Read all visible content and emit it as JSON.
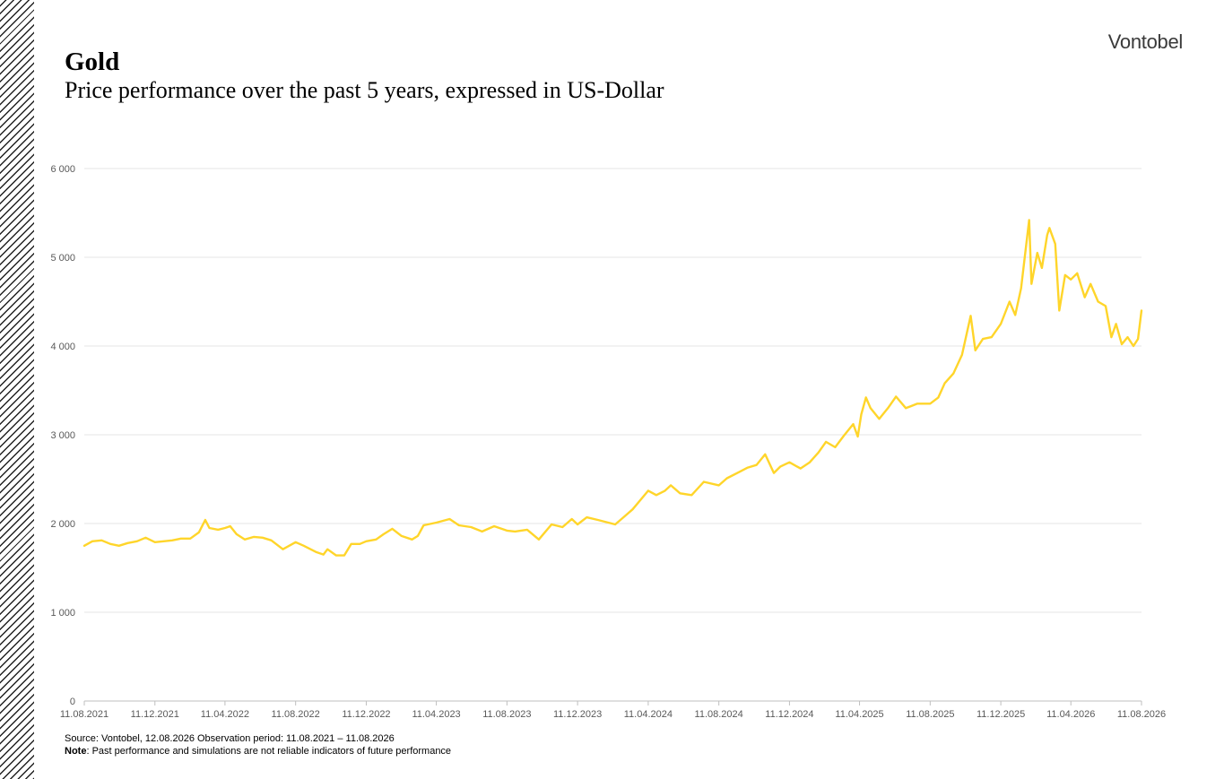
{
  "header": {
    "title": "Gold",
    "subtitle": "Price performance over the past 5 years, expressed in US-Dollar",
    "brand": "Vontobel"
  },
  "footer": {
    "source": "Source: Vontobel, 12.08.2026 Observation period: 11.08.2021 –  11.08.2026",
    "note_label": "Note",
    "note_text": ": Past performance and simulations are not reliable indicators of future performance"
  },
  "colors": {
    "line": "#FFD52A",
    "grid": "#e6e6e6",
    "axis": "#bfbfbf",
    "tick_text": "#595959"
  },
  "chart_data": {
    "type": "line",
    "title": "Gold",
    "subtitle": "Price performance over the past 5 years, expressed in US-Dollar",
    "xlabel": "",
    "ylabel": "",
    "ylim": [
      0,
      6000
    ],
    "y_ticks": [
      0,
      1000,
      2000,
      3000,
      4000,
      5000,
      6000
    ],
    "y_tick_labels": [
      "0",
      "1 000",
      "2 000",
      "3 000",
      "4 000",
      "5 000",
      "6 000"
    ],
    "x_range": [
      "2021-08-11",
      "2026-08-11"
    ],
    "x_ticks": [
      "2021-08-11",
      "2021-12-11",
      "2022-04-11",
      "2022-08-11",
      "2022-12-11",
      "2023-04-11",
      "2023-08-11",
      "2023-12-11",
      "2024-04-11",
      "2024-08-11",
      "2024-12-11",
      "2025-04-11",
      "2025-08-11",
      "2025-12-11",
      "2026-04-11",
      "2026-08-11"
    ],
    "x_tick_labels": [
      "11.08.2021",
      "11.12.2021",
      "11.04.2022",
      "11.08.2022",
      "11.12.2022",
      "11.04.2023",
      "11.08.2023",
      "11.12.2023",
      "11.04.2024",
      "11.08.2024",
      "11.12.2024",
      "11.04.2025",
      "11.08.2025",
      "11.12.2025",
      "11.04.2026",
      "11.08.2026"
    ],
    "grid": true,
    "legend": "none",
    "series": [
      {
        "values": [
          [
            "2021-08-11",
            1750
          ],
          [
            "2021-08-25",
            1800
          ],
          [
            "2021-09-10",
            1810
          ],
          [
            "2021-09-25",
            1770
          ],
          [
            "2021-10-10",
            1750
          ],
          [
            "2021-10-25",
            1780
          ],
          [
            "2021-11-10",
            1800
          ],
          [
            "2021-11-25",
            1840
          ],
          [
            "2021-12-11",
            1790
          ],
          [
            "2021-12-26",
            1800
          ],
          [
            "2022-01-10",
            1810
          ],
          [
            "2022-01-25",
            1830
          ],
          [
            "2022-02-10",
            1830
          ],
          [
            "2022-02-25",
            1900
          ],
          [
            "2022-03-08",
            2040
          ],
          [
            "2022-03-15",
            1950
          ],
          [
            "2022-03-30",
            1930
          ],
          [
            "2022-04-11",
            1950
          ],
          [
            "2022-04-20",
            1970
          ],
          [
            "2022-05-01",
            1880
          ],
          [
            "2022-05-15",
            1820
          ],
          [
            "2022-05-31",
            1850
          ],
          [
            "2022-06-15",
            1840
          ],
          [
            "2022-06-30",
            1810
          ],
          [
            "2022-07-20",
            1710
          ],
          [
            "2022-08-11",
            1790
          ],
          [
            "2022-08-25",
            1750
          ],
          [
            "2022-09-15",
            1680
          ],
          [
            "2022-09-28",
            1650
          ],
          [
            "2022-10-05",
            1710
          ],
          [
            "2022-10-20",
            1640
          ],
          [
            "2022-11-03",
            1640
          ],
          [
            "2022-11-15",
            1770
          ],
          [
            "2022-11-30",
            1770
          ],
          [
            "2022-12-11",
            1800
          ],
          [
            "2022-12-28",
            1820
          ],
          [
            "2023-01-10",
            1880
          ],
          [
            "2023-01-25",
            1940
          ],
          [
            "2023-02-10",
            1860
          ],
          [
            "2023-02-28",
            1820
          ],
          [
            "2023-03-10",
            1860
          ],
          [
            "2023-03-20",
            1980
          ],
          [
            "2023-04-11",
            2010
          ],
          [
            "2023-05-04",
            2050
          ],
          [
            "2023-05-20",
            1980
          ],
          [
            "2023-06-10",
            1960
          ],
          [
            "2023-06-29",
            1910
          ],
          [
            "2023-07-20",
            1970
          ],
          [
            "2023-08-11",
            1920
          ],
          [
            "2023-08-25",
            1910
          ],
          [
            "2023-09-15",
            1930
          ],
          [
            "2023-10-05",
            1820
          ],
          [
            "2023-10-27",
            1990
          ],
          [
            "2023-11-15",
            1960
          ],
          [
            "2023-12-01",
            2050
          ],
          [
            "2023-12-11",
            1990
          ],
          [
            "2023-12-27",
            2070
          ],
          [
            "2024-01-15",
            2040
          ],
          [
            "2024-02-14",
            1990
          ],
          [
            "2024-03-01",
            2080
          ],
          [
            "2024-03-15",
            2160
          ],
          [
            "2024-04-11",
            2370
          ],
          [
            "2024-04-25",
            2320
          ],
          [
            "2024-05-10",
            2370
          ],
          [
            "2024-05-20",
            2430
          ],
          [
            "2024-06-05",
            2340
          ],
          [
            "2024-06-25",
            2320
          ],
          [
            "2024-07-16",
            2470
          ],
          [
            "2024-08-11",
            2430
          ],
          [
            "2024-08-25",
            2510
          ],
          [
            "2024-09-15",
            2580
          ],
          [
            "2024-09-30",
            2630
          ],
          [
            "2024-10-15",
            2660
          ],
          [
            "2024-10-30",
            2780
          ],
          [
            "2024-11-14",
            2570
          ],
          [
            "2024-11-25",
            2640
          ],
          [
            "2024-12-11",
            2690
          ],
          [
            "2024-12-30",
            2620
          ],
          [
            "2025-01-15",
            2690
          ],
          [
            "2025-01-30",
            2800
          ],
          [
            "2025-02-12",
            2920
          ],
          [
            "2025-02-28",
            2860
          ],
          [
            "2025-03-15",
            2990
          ],
          [
            "2025-03-31",
            3120
          ],
          [
            "2025-04-08",
            2980
          ],
          [
            "2025-04-14",
            3230
          ],
          [
            "2025-04-22",
            3420
          ],
          [
            "2025-04-30",
            3300
          ],
          [
            "2025-05-15",
            3180
          ],
          [
            "2025-05-30",
            3300
          ],
          [
            "2025-06-13",
            3430
          ],
          [
            "2025-06-30",
            3300
          ],
          [
            "2025-07-20",
            3350
          ],
          [
            "2025-08-11",
            3350
          ],
          [
            "2025-08-25",
            3420
          ],
          [
            "2025-09-05",
            3580
          ],
          [
            "2025-09-20",
            3690
          ],
          [
            "2025-10-05",
            3900
          ],
          [
            "2025-10-20",
            4340
          ],
          [
            "2025-10-28",
            3950
          ],
          [
            "2025-11-10",
            4080
          ],
          [
            "2025-11-25",
            4100
          ],
          [
            "2025-12-11",
            4250
          ],
          [
            "2025-12-26",
            4500
          ],
          [
            "2026-01-05",
            4350
          ],
          [
            "2026-01-15",
            4650
          ],
          [
            "2026-01-29",
            5420
          ],
          [
            "2026-02-02",
            4700
          ],
          [
            "2026-02-12",
            5050
          ],
          [
            "2026-02-20",
            4880
          ],
          [
            "2026-03-01",
            5250
          ],
          [
            "2026-03-05",
            5330
          ],
          [
            "2026-03-15",
            5150
          ],
          [
            "2026-03-22",
            4400
          ],
          [
            "2026-04-01",
            4800
          ],
          [
            "2026-04-11",
            4750
          ],
          [
            "2026-04-22",
            4820
          ],
          [
            "2026-05-05",
            4550
          ],
          [
            "2026-05-15",
            4700
          ],
          [
            "2026-05-28",
            4500
          ],
          [
            "2026-06-10",
            4450
          ],
          [
            "2026-06-20",
            4100
          ],
          [
            "2026-06-28",
            4250
          ],
          [
            "2026-07-08",
            4020
          ],
          [
            "2026-07-18",
            4100
          ],
          [
            "2026-07-28",
            4000
          ],
          [
            "2026-08-05",
            4080
          ],
          [
            "2026-08-11",
            4400
          ]
        ]
      }
    ]
  }
}
